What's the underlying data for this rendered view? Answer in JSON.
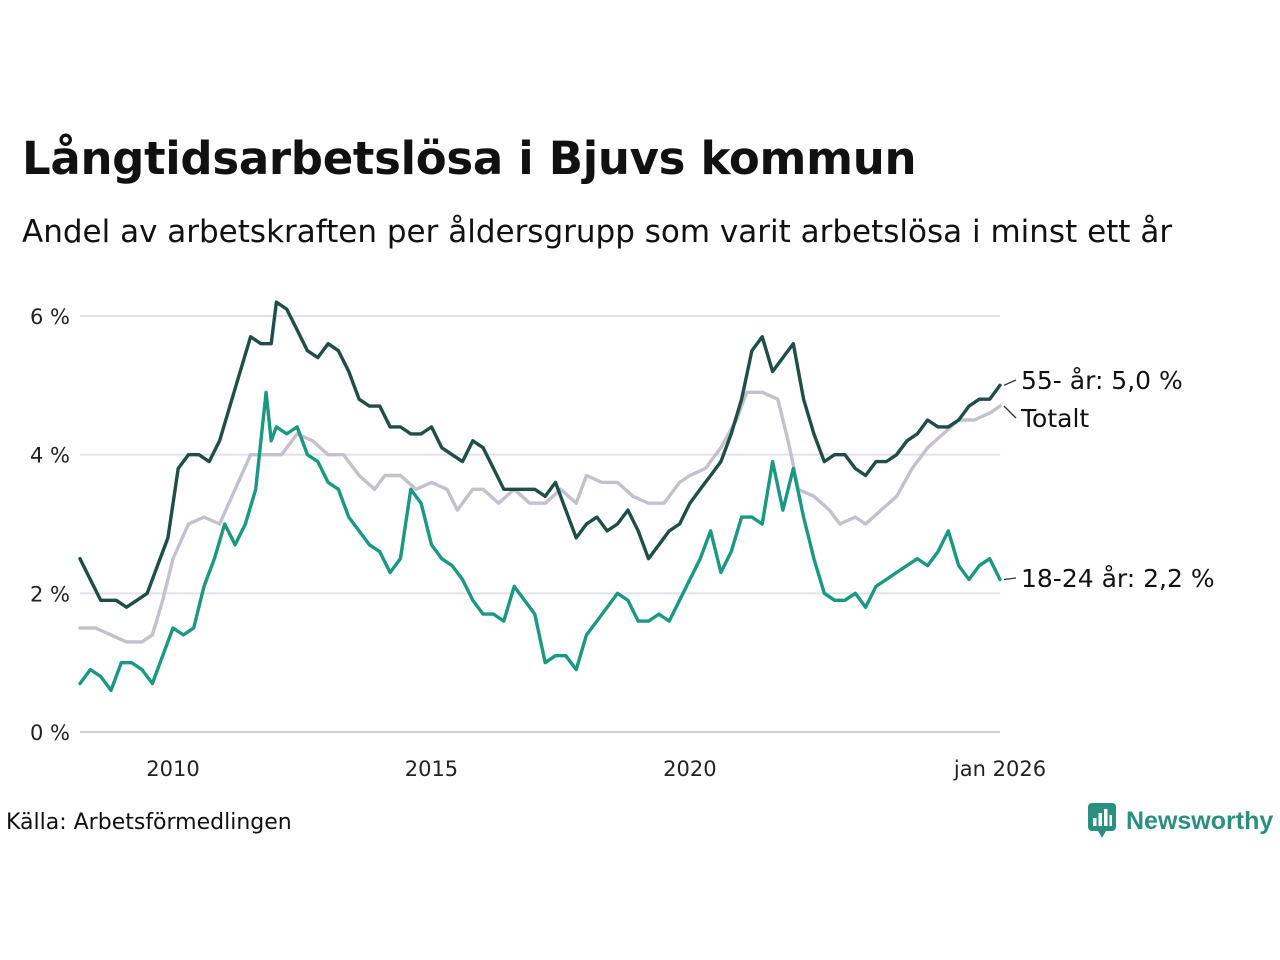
{
  "header": {
    "title": "Långtidsarbetslösa i Bjuvs kommun",
    "subtitle": "Andel av arbetskraften per åldersgrupp som varit arbetslösa i minst ett år"
  },
  "footer": {
    "source": "Källa: Arbetsförmedlingen",
    "brand": "Newsworthy"
  },
  "chart_data": {
    "type": "line",
    "title": "Långtidsarbetslösa i Bjuvs kommun",
    "subtitle": "Andel av arbetskraften per åldersgrupp som varit arbetslösa i minst ett år",
    "xlabel": "",
    "ylabel": "",
    "x_range": [
      2008.2,
      2026.0
    ],
    "ylim": [
      0,
      6.2
    ],
    "y_ticks": [
      0,
      2,
      4,
      6
    ],
    "y_tick_labels": [
      "0 %",
      "2 %",
      "4 %",
      "6 %"
    ],
    "x_ticks": [
      2010,
      2015,
      2020,
      2026.0
    ],
    "x_tick_labels": [
      "2010",
      "2015",
      "2020",
      "jan 2026"
    ],
    "grid": true,
    "series": [
      {
        "name": "Totalt",
        "label": "Totalt",
        "color": "#c4c0cc",
        "points": [
          [
            2008.2,
            1.5
          ],
          [
            2008.5,
            1.5
          ],
          [
            2008.8,
            1.4
          ],
          [
            2009.1,
            1.3
          ],
          [
            2009.4,
            1.3
          ],
          [
            2009.6,
            1.4
          ],
          [
            2009.8,
            1.9
          ],
          [
            2010.0,
            2.5
          ],
          [
            2010.3,
            3.0
          ],
          [
            2010.6,
            3.1
          ],
          [
            2010.9,
            3.0
          ],
          [
            2011.2,
            3.5
          ],
          [
            2011.5,
            4.0
          ],
          [
            2011.8,
            4.0
          ],
          [
            2012.1,
            4.0
          ],
          [
            2012.4,
            4.3
          ],
          [
            2012.7,
            4.2
          ],
          [
            2013.0,
            4.0
          ],
          [
            2013.3,
            4.0
          ],
          [
            2013.6,
            3.7
          ],
          [
            2013.9,
            3.5
          ],
          [
            2014.1,
            3.7
          ],
          [
            2014.4,
            3.7
          ],
          [
            2014.7,
            3.5
          ],
          [
            2015.0,
            3.6
          ],
          [
            2015.3,
            3.5
          ],
          [
            2015.5,
            3.2
          ],
          [
            2015.8,
            3.5
          ],
          [
            2016.0,
            3.5
          ],
          [
            2016.3,
            3.3
          ],
          [
            2016.6,
            3.5
          ],
          [
            2016.9,
            3.3
          ],
          [
            2017.2,
            3.3
          ],
          [
            2017.5,
            3.5
          ],
          [
            2017.8,
            3.3
          ],
          [
            2018.0,
            3.7
          ],
          [
            2018.3,
            3.6
          ],
          [
            2018.6,
            3.6
          ],
          [
            2018.9,
            3.4
          ],
          [
            2019.2,
            3.3
          ],
          [
            2019.5,
            3.3
          ],
          [
            2019.8,
            3.6
          ],
          [
            2020.0,
            3.7
          ],
          [
            2020.3,
            3.8
          ],
          [
            2020.6,
            4.1
          ],
          [
            2020.9,
            4.5
          ],
          [
            2021.1,
            4.9
          ],
          [
            2021.4,
            4.9
          ],
          [
            2021.7,
            4.8
          ],
          [
            2021.9,
            4.2
          ],
          [
            2022.1,
            3.5
          ],
          [
            2022.4,
            3.4
          ],
          [
            2022.7,
            3.2
          ],
          [
            2022.9,
            3.0
          ],
          [
            2023.2,
            3.1
          ],
          [
            2023.4,
            3.0
          ],
          [
            2023.7,
            3.2
          ],
          [
            2024.0,
            3.4
          ],
          [
            2024.3,
            3.8
          ],
          [
            2024.6,
            4.1
          ],
          [
            2024.9,
            4.3
          ],
          [
            2025.2,
            4.5
          ],
          [
            2025.5,
            4.5
          ],
          [
            2025.8,
            4.6
          ],
          [
            2026.0,
            4.7
          ]
        ]
      },
      {
        "name": "55- år",
        "label": "55- år: 5,0 %",
        "color": "#1f4e47",
        "points": [
          [
            2008.2,
            2.5
          ],
          [
            2008.4,
            2.2
          ],
          [
            2008.6,
            1.9
          ],
          [
            2008.9,
            1.9
          ],
          [
            2009.1,
            1.8
          ],
          [
            2009.3,
            1.9
          ],
          [
            2009.5,
            2.0
          ],
          [
            2009.7,
            2.4
          ],
          [
            2009.9,
            2.8
          ],
          [
            2010.1,
            3.8
          ],
          [
            2010.3,
            4.0
          ],
          [
            2010.5,
            4.0
          ],
          [
            2010.7,
            3.9
          ],
          [
            2010.9,
            4.2
          ],
          [
            2011.1,
            4.7
          ],
          [
            2011.3,
            5.2
          ],
          [
            2011.5,
            5.7
          ],
          [
            2011.7,
            5.6
          ],
          [
            2011.9,
            5.6
          ],
          [
            2012.0,
            6.2
          ],
          [
            2012.2,
            6.1
          ],
          [
            2012.4,
            5.8
          ],
          [
            2012.6,
            5.5
          ],
          [
            2012.8,
            5.4
          ],
          [
            2013.0,
            5.6
          ],
          [
            2013.2,
            5.5
          ],
          [
            2013.4,
            5.2
          ],
          [
            2013.6,
            4.8
          ],
          [
            2013.8,
            4.7
          ],
          [
            2014.0,
            4.7
          ],
          [
            2014.2,
            4.4
          ],
          [
            2014.4,
            4.4
          ],
          [
            2014.6,
            4.3
          ],
          [
            2014.8,
            4.3
          ],
          [
            2015.0,
            4.4
          ],
          [
            2015.2,
            4.1
          ],
          [
            2015.4,
            4.0
          ],
          [
            2015.6,
            3.9
          ],
          [
            2015.8,
            4.2
          ],
          [
            2016.0,
            4.1
          ],
          [
            2016.2,
            3.8
          ],
          [
            2016.4,
            3.5
          ],
          [
            2016.6,
            3.5
          ],
          [
            2016.8,
            3.5
          ],
          [
            2017.0,
            3.5
          ],
          [
            2017.2,
            3.4
          ],
          [
            2017.4,
            3.6
          ],
          [
            2017.6,
            3.2
          ],
          [
            2017.8,
            2.8
          ],
          [
            2018.0,
            3.0
          ],
          [
            2018.2,
            3.1
          ],
          [
            2018.4,
            2.9
          ],
          [
            2018.6,
            3.0
          ],
          [
            2018.8,
            3.2
          ],
          [
            2019.0,
            2.9
          ],
          [
            2019.2,
            2.5
          ],
          [
            2019.4,
            2.7
          ],
          [
            2019.6,
            2.9
          ],
          [
            2019.8,
            3.0
          ],
          [
            2020.0,
            3.3
          ],
          [
            2020.2,
            3.5
          ],
          [
            2020.4,
            3.7
          ],
          [
            2020.6,
            3.9
          ],
          [
            2020.8,
            4.3
          ],
          [
            2021.0,
            4.8
          ],
          [
            2021.2,
            5.5
          ],
          [
            2021.4,
            5.7
          ],
          [
            2021.6,
            5.2
          ],
          [
            2021.8,
            5.4
          ],
          [
            2022.0,
            5.6
          ],
          [
            2022.2,
            4.8
          ],
          [
            2022.4,
            4.3
          ],
          [
            2022.6,
            3.9
          ],
          [
            2022.8,
            4.0
          ],
          [
            2023.0,
            4.0
          ],
          [
            2023.2,
            3.8
          ],
          [
            2023.4,
            3.7
          ],
          [
            2023.6,
            3.9
          ],
          [
            2023.8,
            3.9
          ],
          [
            2024.0,
            4.0
          ],
          [
            2024.2,
            4.2
          ],
          [
            2024.4,
            4.3
          ],
          [
            2024.6,
            4.5
          ],
          [
            2024.8,
            4.4
          ],
          [
            2025.0,
            4.4
          ],
          [
            2025.2,
            4.5
          ],
          [
            2025.4,
            4.7
          ],
          [
            2025.6,
            4.8
          ],
          [
            2025.8,
            4.8
          ],
          [
            2026.0,
            5.0
          ]
        ]
      },
      {
        "name": "18-24 år",
        "label": "18-24 år: 2,2 %",
        "color": "#1b9882",
        "points": [
          [
            2008.2,
            0.7
          ],
          [
            2008.4,
            0.9
          ],
          [
            2008.6,
            0.8
          ],
          [
            2008.8,
            0.6
          ],
          [
            2009.0,
            1.0
          ],
          [
            2009.2,
            1.0
          ],
          [
            2009.4,
            0.9
          ],
          [
            2009.6,
            0.7
          ],
          [
            2009.8,
            1.1
          ],
          [
            2010.0,
            1.5
          ],
          [
            2010.2,
            1.4
          ],
          [
            2010.4,
            1.5
          ],
          [
            2010.6,
            2.1
          ],
          [
            2010.8,
            2.5
          ],
          [
            2011.0,
            3.0
          ],
          [
            2011.2,
            2.7
          ],
          [
            2011.4,
            3.0
          ],
          [
            2011.6,
            3.5
          ],
          [
            2011.8,
            4.9
          ],
          [
            2011.9,
            4.2
          ],
          [
            2012.0,
            4.4
          ],
          [
            2012.2,
            4.3
          ],
          [
            2012.4,
            4.4
          ],
          [
            2012.6,
            4.0
          ],
          [
            2012.8,
            3.9
          ],
          [
            2013.0,
            3.6
          ],
          [
            2013.2,
            3.5
          ],
          [
            2013.4,
            3.1
          ],
          [
            2013.6,
            2.9
          ],
          [
            2013.8,
            2.7
          ],
          [
            2014.0,
            2.6
          ],
          [
            2014.2,
            2.3
          ],
          [
            2014.4,
            2.5
          ],
          [
            2014.6,
            3.5
          ],
          [
            2014.8,
            3.3
          ],
          [
            2015.0,
            2.7
          ],
          [
            2015.2,
            2.5
          ],
          [
            2015.4,
            2.4
          ],
          [
            2015.6,
            2.2
          ],
          [
            2015.8,
            1.9
          ],
          [
            2016.0,
            1.7
          ],
          [
            2016.2,
            1.7
          ],
          [
            2016.4,
            1.6
          ],
          [
            2016.6,
            2.1
          ],
          [
            2016.8,
            1.9
          ],
          [
            2017.0,
            1.7
          ],
          [
            2017.2,
            1.0
          ],
          [
            2017.4,
            1.1
          ],
          [
            2017.6,
            1.1
          ],
          [
            2017.8,
            0.9
          ],
          [
            2018.0,
            1.4
          ],
          [
            2018.2,
            1.6
          ],
          [
            2018.4,
            1.8
          ],
          [
            2018.6,
            2.0
          ],
          [
            2018.8,
            1.9
          ],
          [
            2019.0,
            1.6
          ],
          [
            2019.2,
            1.6
          ],
          [
            2019.4,
            1.7
          ],
          [
            2019.6,
            1.6
          ],
          [
            2019.8,
            1.9
          ],
          [
            2020.0,
            2.2
          ],
          [
            2020.2,
            2.5
          ],
          [
            2020.4,
            2.9
          ],
          [
            2020.6,
            2.3
          ],
          [
            2020.8,
            2.6
          ],
          [
            2021.0,
            3.1
          ],
          [
            2021.2,
            3.1
          ],
          [
            2021.4,
            3.0
          ],
          [
            2021.6,
            3.9
          ],
          [
            2021.8,
            3.2
          ],
          [
            2022.0,
            3.8
          ],
          [
            2022.2,
            3.1
          ],
          [
            2022.4,
            2.5
          ],
          [
            2022.6,
            2.0
          ],
          [
            2022.8,
            1.9
          ],
          [
            2023.0,
            1.9
          ],
          [
            2023.2,
            2.0
          ],
          [
            2023.4,
            1.8
          ],
          [
            2023.6,
            2.1
          ],
          [
            2023.8,
            2.2
          ],
          [
            2024.0,
            2.3
          ],
          [
            2024.2,
            2.4
          ],
          [
            2024.4,
            2.5
          ],
          [
            2024.6,
            2.4
          ],
          [
            2024.8,
            2.6
          ],
          [
            2025.0,
            2.9
          ],
          [
            2025.2,
            2.4
          ],
          [
            2025.4,
            2.2
          ],
          [
            2025.6,
            2.4
          ],
          [
            2025.8,
            2.5
          ],
          [
            2026.0,
            2.2
          ]
        ]
      }
    ]
  }
}
